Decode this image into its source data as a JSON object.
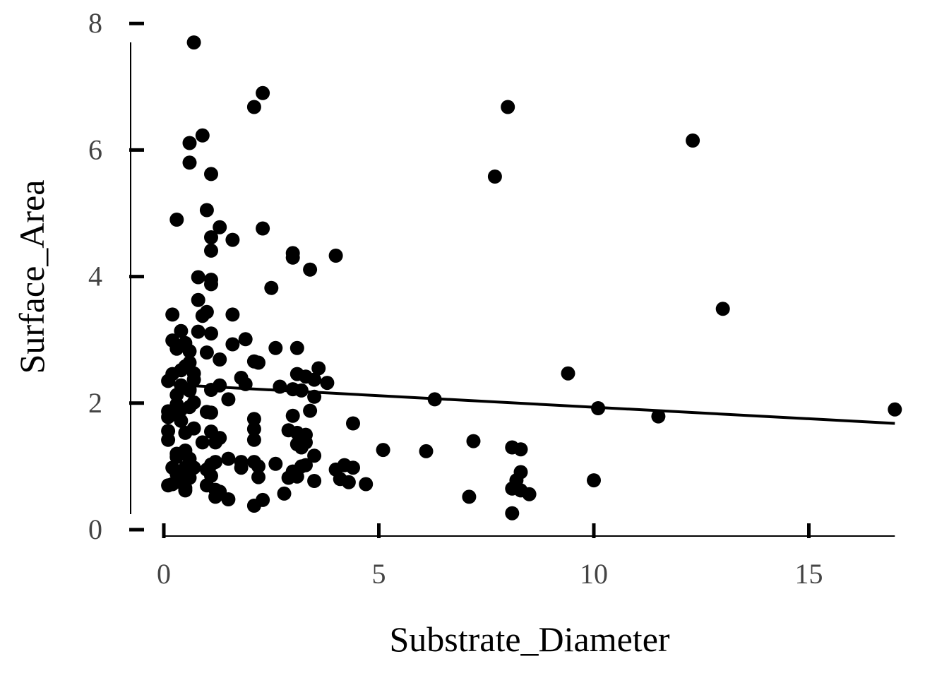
{
  "chart_data": {
    "type": "scatter",
    "title": "",
    "xlabel": "Substrate_Diameter",
    "ylabel": "Surface_Area",
    "xlim": [
      0,
      17
    ],
    "ylim": [
      0,
      8
    ],
    "xticks": [
      0,
      5,
      10,
      15
    ],
    "yticks": [
      0,
      2,
      4,
      6,
      8
    ],
    "grid": false,
    "legend": "none",
    "colors": {
      "points": "#000000",
      "trend": "#000000",
      "axis": "#000000",
      "tick_text": "#444444"
    },
    "trendline": {
      "x": [
        0,
        17
      ],
      "y": [
        2.3,
        1.68
      ]
    },
    "points": [
      [
        0.7,
        7.7
      ],
      [
        2.3,
        6.9
      ],
      [
        2.1,
        6.68
      ],
      [
        8.0,
        6.68
      ],
      [
        12.3,
        6.15
      ],
      [
        0.9,
        6.23
      ],
      [
        0.6,
        6.11
      ],
      [
        0.6,
        5.8
      ],
      [
        1.1,
        5.62
      ],
      [
        7.7,
        5.58
      ],
      [
        1.0,
        5.05
      ],
      [
        0.3,
        4.9
      ],
      [
        2.3,
        4.76
      ],
      [
        1.3,
        4.78
      ],
      [
        1.1,
        4.62
      ],
      [
        1.6,
        4.58
      ],
      [
        1.1,
        4.41
      ],
      [
        3.0,
        4.37
      ],
      [
        3.0,
        4.3
      ],
      [
        4.0,
        4.33
      ],
      [
        3.4,
        4.11
      ],
      [
        0.8,
        3.99
      ],
      [
        1.1,
        3.95
      ],
      [
        1.1,
        3.88
      ],
      [
        2.5,
        3.82
      ],
      [
        0.8,
        3.63
      ],
      [
        1.0,
        3.44
      ],
      [
        0.9,
        3.38
      ],
      [
        1.6,
        3.4
      ],
      [
        0.2,
        3.4
      ],
      [
        13.0,
        3.49
      ],
      [
        0.4,
        3.14
      ],
      [
        0.8,
        3.13
      ],
      [
        1.1,
        3.1
      ],
      [
        0.2,
        2.99
      ],
      [
        1.9,
        3.01
      ],
      [
        0.5,
        2.95
      ],
      [
        1.6,
        2.93
      ],
      [
        0.3,
        2.86
      ],
      [
        0.6,
        2.82
      ],
      [
        1.0,
        2.8
      ],
      [
        2.6,
        2.87
      ],
      [
        3.1,
        2.87
      ],
      [
        1.3,
        2.69
      ],
      [
        2.1,
        2.66
      ],
      [
        2.2,
        2.64
      ],
      [
        0.6,
        2.64
      ],
      [
        0.5,
        2.58
      ],
      [
        3.6,
        2.55
      ],
      [
        0.4,
        2.52
      ],
      [
        0.7,
        2.47
      ],
      [
        0.2,
        2.46
      ],
      [
        9.4,
        2.47
      ],
      [
        3.1,
        2.46
      ],
      [
        3.3,
        2.42
      ],
      [
        1.8,
        2.4
      ],
      [
        0.7,
        2.37
      ],
      [
        0.1,
        2.35
      ],
      [
        3.5,
        2.37
      ],
      [
        3.8,
        2.32
      ],
      [
        1.9,
        2.3
      ],
      [
        1.3,
        2.28
      ],
      [
        0.4,
        2.28
      ],
      [
        0.6,
        2.22
      ],
      [
        1.1,
        2.21
      ],
      [
        2.7,
        2.26
      ],
      [
        3.0,
        2.22
      ],
      [
        3.2,
        2.2
      ],
      [
        0.6,
        2.2
      ],
      [
        3.5,
        2.1
      ],
      [
        0.3,
        2.13
      ],
      [
        1.5,
        2.06
      ],
      [
        6.3,
        2.06
      ],
      [
        0.7,
        2.01
      ],
      [
        0.3,
        1.98
      ],
      [
        0.6,
        1.94
      ],
      [
        0.4,
        1.9
      ],
      [
        10.1,
        1.92
      ],
      [
        0.1,
        1.87
      ],
      [
        1.0,
        1.86
      ],
      [
        1.1,
        1.85
      ],
      [
        0.3,
        1.82
      ],
      [
        0.1,
        1.78
      ],
      [
        3.0,
        1.8
      ],
      [
        3.4,
        1.88
      ],
      [
        11.5,
        1.79
      ],
      [
        2.1,
        1.75
      ],
      [
        0.4,
        1.72
      ],
      [
        17.0,
        1.9
      ],
      [
        4.4,
        1.68
      ],
      [
        0.7,
        1.6
      ],
      [
        0.1,
        1.56
      ],
      [
        2.1,
        1.59
      ],
      [
        0.5,
        1.53
      ],
      [
        1.1,
        1.55
      ],
      [
        2.9,
        1.57
      ],
      [
        3.1,
        1.53
      ],
      [
        3.3,
        1.5
      ],
      [
        1.3,
        1.45
      ],
      [
        0.1,
        1.42
      ],
      [
        0.9,
        1.38
      ],
      [
        1.2,
        1.38
      ],
      [
        3.3,
        1.38
      ],
      [
        2.1,
        1.42
      ],
      [
        7.2,
        1.4
      ],
      [
        3.2,
        1.3
      ],
      [
        3.1,
        1.35
      ],
      [
        0.5,
        1.25
      ],
      [
        5.1,
        1.26
      ],
      [
        6.1,
        1.24
      ],
      [
        8.1,
        1.3
      ],
      [
        8.3,
        1.27
      ],
      [
        0.3,
        1.2
      ],
      [
        0.5,
        1.2
      ],
      [
        3.5,
        1.17
      ],
      [
        0.3,
        1.15
      ],
      [
        0.6,
        1.12
      ],
      [
        1.5,
        1.12
      ],
      [
        1.2,
        1.07
      ],
      [
        1.1,
        1.03
      ],
      [
        1.8,
        1.07
      ],
      [
        2.1,
        1.07
      ],
      [
        2.6,
        1.04
      ],
      [
        3.3,
        1.02
      ],
      [
        0.2,
        0.98
      ],
      [
        0.5,
        0.98
      ],
      [
        0.7,
        0.98
      ],
      [
        1.8,
        0.98
      ],
      [
        2.2,
        1.0
      ],
      [
        3.2,
        1.0
      ],
      [
        4.2,
        1.02
      ],
      [
        4.4,
        0.98
      ],
      [
        0.6,
        0.92
      ],
      [
        1.0,
        0.95
      ],
      [
        3.0,
        0.92
      ],
      [
        4.0,
        0.95
      ],
      [
        8.3,
        0.91
      ],
      [
        0.3,
        0.88
      ],
      [
        1.1,
        0.85
      ],
      [
        2.2,
        0.83
      ],
      [
        2.9,
        0.82
      ],
      [
        3.1,
        0.84
      ],
      [
        4.1,
        0.8
      ],
      [
        4.3,
        0.75
      ],
      [
        8.2,
        0.78
      ],
      [
        10.0,
        0.78
      ],
      [
        0.6,
        0.82
      ],
      [
        3.5,
        0.77
      ],
      [
        0.4,
        0.75
      ],
      [
        0.1,
        0.7
      ],
      [
        1.0,
        0.7
      ],
      [
        4.7,
        0.72
      ],
      [
        0.2,
        0.72
      ],
      [
        0.5,
        0.66
      ],
      [
        1.2,
        0.63
      ],
      [
        8.1,
        0.65
      ],
      [
        0.5,
        0.62
      ],
      [
        8.3,
        0.62
      ],
      [
        1.3,
        0.6
      ],
      [
        8.5,
        0.56
      ],
      [
        1.2,
        0.52
      ],
      [
        2.8,
        0.57
      ],
      [
        7.1,
        0.52
      ],
      [
        1.5,
        0.48
      ],
      [
        2.3,
        0.47
      ],
      [
        2.1,
        0.38
      ],
      [
        8.1,
        0.26
      ]
    ]
  }
}
